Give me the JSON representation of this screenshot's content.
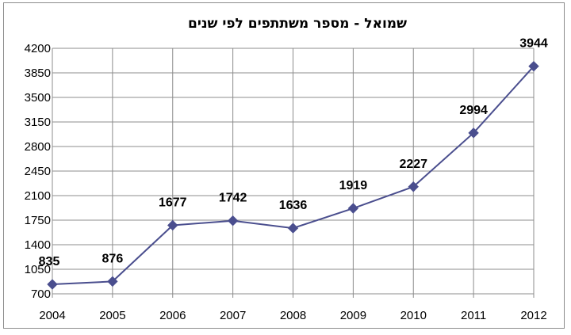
{
  "chart_data": {
    "type": "line",
    "title": "שמואל - מספר משתתפים לפי שנים",
    "xlabel": "",
    "ylabel": "",
    "categories": [
      "2004",
      "2005",
      "2006",
      "2007",
      "2008",
      "2009",
      "2010",
      "2011",
      "2012"
    ],
    "series": [
      {
        "values": [
          835,
          876,
          1677,
          1742,
          1636,
          1919,
          2227,
          2994,
          3944
        ],
        "color": "#4a4e8e"
      }
    ],
    "ylim": [
      700,
      4200
    ],
    "yticks": [
      700,
      1050,
      1400,
      1750,
      2100,
      2450,
      2800,
      3150,
      3500,
      3850,
      4200
    ],
    "grid": true,
    "legend": "none",
    "marker": "diamond"
  }
}
